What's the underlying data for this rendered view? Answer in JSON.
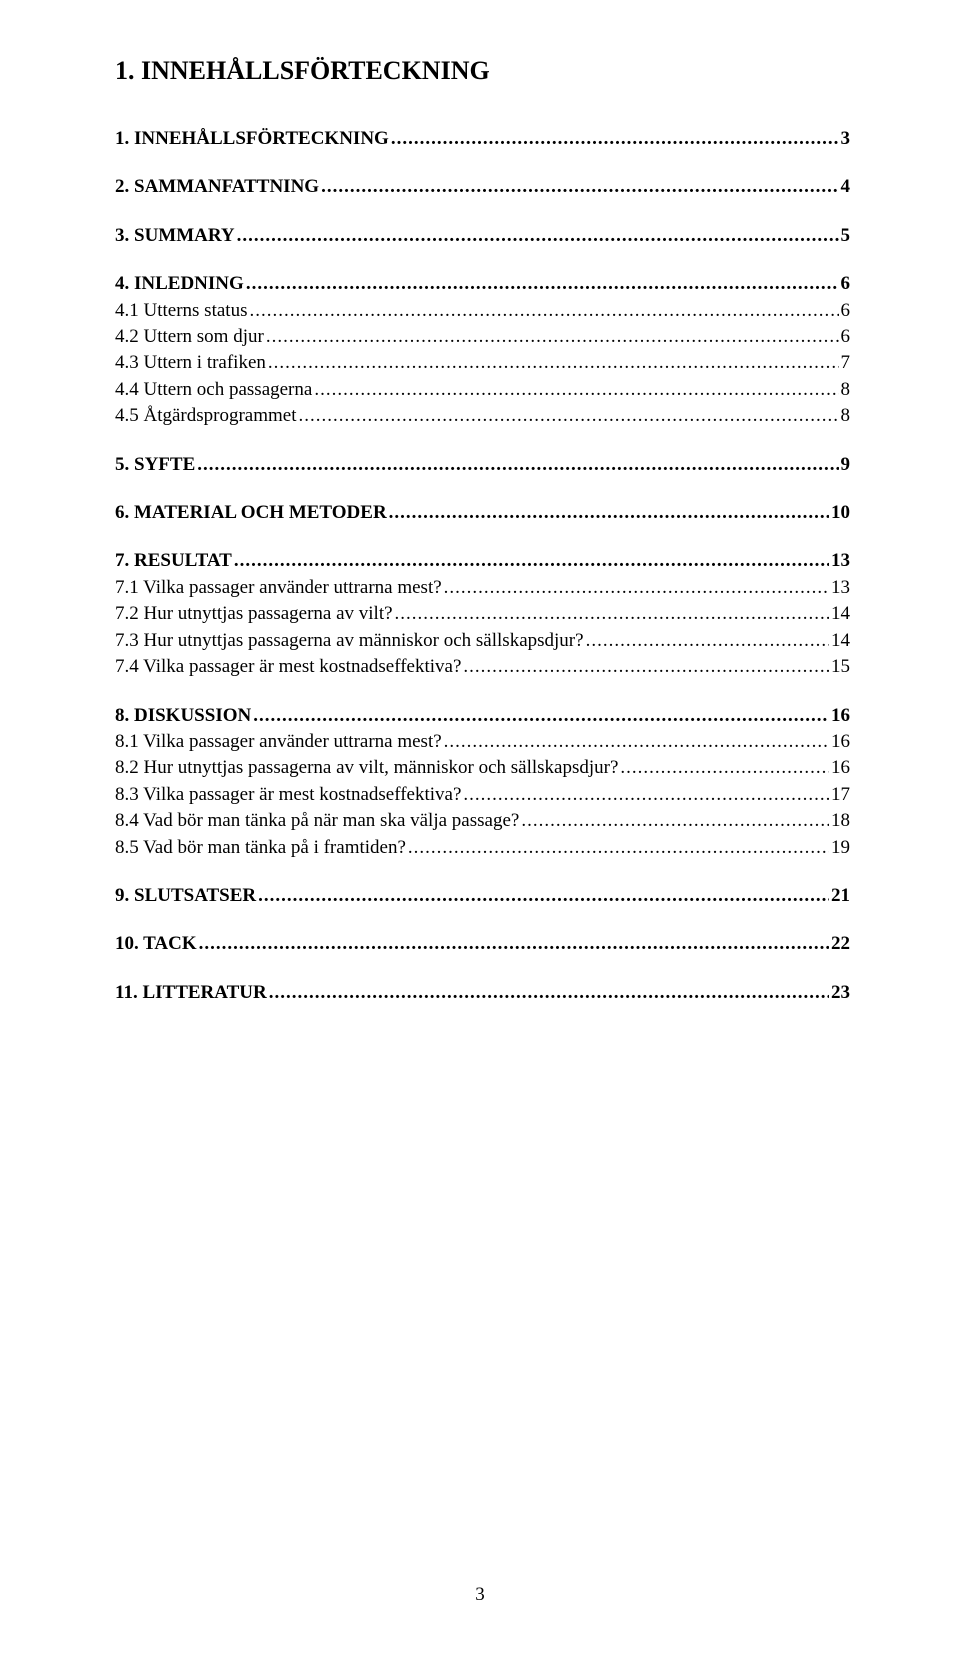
{
  "title": "1.  INNEHÅLLSFÖRTECKNING",
  "page_number": "3",
  "entries": [
    {
      "label": "1.  INNEHÅLLSFÖRTECKNING",
      "page": "3",
      "bold": true,
      "gap_before": false
    },
    {
      "label": "2.  SAMMANFATTNING",
      "page": "4",
      "bold": true,
      "gap_before": true
    },
    {
      "label": "3.  SUMMARY",
      "page": "5",
      "bold": true,
      "gap_before": true
    },
    {
      "label": "4.  INLEDNING",
      "page": "6",
      "bold": true,
      "gap_before": true
    },
    {
      "label": "4.1 Utterns status",
      "page": "6",
      "bold": false,
      "gap_before": false
    },
    {
      "label": "4.2 Uttern som djur",
      "page": "6",
      "bold": false,
      "gap_before": false
    },
    {
      "label": "4.3 Uttern i trafiken",
      "page": "7",
      "bold": false,
      "gap_before": false
    },
    {
      "label": "4.4 Uttern och passagerna",
      "page": "8",
      "bold": false,
      "gap_before": false
    },
    {
      "label": "4.5 Åtgärdsprogrammet",
      "page": "8",
      "bold": false,
      "gap_before": false
    },
    {
      "label": "5.  SYFTE",
      "page": "9",
      "bold": true,
      "gap_before": true
    },
    {
      "label": "6.  MATERIAL OCH METODER",
      "page": "10",
      "bold": true,
      "gap_before": true
    },
    {
      "label": "7.  RESULTAT",
      "page": "13",
      "bold": true,
      "gap_before": true
    },
    {
      "label": "7.1 Vilka passager använder uttrarna mest?",
      "page": "13",
      "bold": false,
      "gap_before": false
    },
    {
      "label": "7.2 Hur utnyttjas passagerna av vilt?",
      "page": "14",
      "bold": false,
      "gap_before": false
    },
    {
      "label": "7.3 Hur utnyttjas passagerna av människor och sällskapsdjur?",
      "page": "14",
      "bold": false,
      "gap_before": false
    },
    {
      "label": "7.4 Vilka passager är mest kostnadseffektiva?",
      "page": "15",
      "bold": false,
      "gap_before": false
    },
    {
      "label": "8.  DISKUSSION",
      "page": "16",
      "bold": true,
      "gap_before": true
    },
    {
      "label": "8.1 Vilka passager använder uttrarna mest?",
      "page": "16",
      "bold": false,
      "gap_before": false
    },
    {
      "label": "8.2 Hur utnyttjas passagerna av vilt, människor och sällskapsdjur?",
      "page": "16",
      "bold": false,
      "gap_before": false
    },
    {
      "label": "8.3 Vilka passager är mest kostnadseffektiva?",
      "page": "17",
      "bold": false,
      "gap_before": false
    },
    {
      "label": "8.4 Vad bör man tänka på när man ska välja passage?",
      "page": "18",
      "bold": false,
      "gap_before": false
    },
    {
      "label": "8.5 Vad bör man tänka på i framtiden?",
      "page": "19",
      "bold": false,
      "gap_before": false
    },
    {
      "label": "9.  SLUTSATSER",
      "page": "21",
      "bold": true,
      "gap_before": true
    },
    {
      "label": "10. TACK",
      "page": "22",
      "bold": true,
      "gap_before": true
    },
    {
      "label": "11. LITTERATUR",
      "page": "23",
      "bold": true,
      "gap_before": true
    }
  ]
}
